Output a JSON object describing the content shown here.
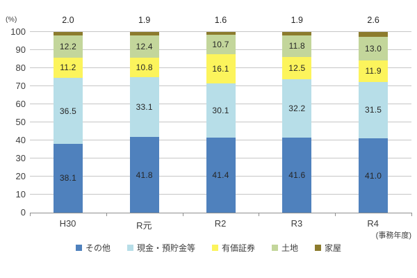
{
  "chart_data": {
    "type": "bar",
    "subtype": "stacked-100-percent-column",
    "title": "",
    "unit_label": "(%)",
    "x_axis_note": "(事務年度)",
    "categories": [
      "H30",
      "R元",
      "R2",
      "R3",
      "R4"
    ],
    "series": [
      {
        "name": "その他",
        "color": "#4F81BD",
        "values": [
          38.1,
          41.8,
          41.4,
          41.6,
          41.0
        ],
        "value_labels": "inside"
      },
      {
        "name": "現金・預貯金等",
        "color": "#B7DEE8",
        "values": [
          36.5,
          33.1,
          30.1,
          32.2,
          31.5
        ],
        "value_labels": "inside"
      },
      {
        "name": "有価証券",
        "color": "#FCF45C",
        "values": [
          11.2,
          10.8,
          16.1,
          12.5,
          11.9
        ],
        "value_labels": "inside"
      },
      {
        "name": "土地",
        "color": "#C3D69B",
        "values": [
          12.2,
          12.4,
          10.7,
          11.8,
          13.0
        ],
        "value_labels": "inside"
      },
      {
        "name": "家屋",
        "color": "#8C7B2D",
        "values": [
          2.0,
          1.9,
          1.6,
          1.9,
          2.6
        ],
        "value_labels": "above"
      }
    ],
    "ylim": [
      0,
      100
    ],
    "yticks": [
      0,
      10,
      20,
      30,
      40,
      50,
      60,
      70,
      80,
      90,
      100
    ],
    "grid": true,
    "grid_color": "#C6C6C6",
    "axis_color": "#8E8E8E",
    "text_color": "#404040",
    "legend_position": "bottom",
    "legend": [
      "その他",
      "現金・預貯金等",
      "有価証券",
      "土地",
      "家屋"
    ]
  }
}
